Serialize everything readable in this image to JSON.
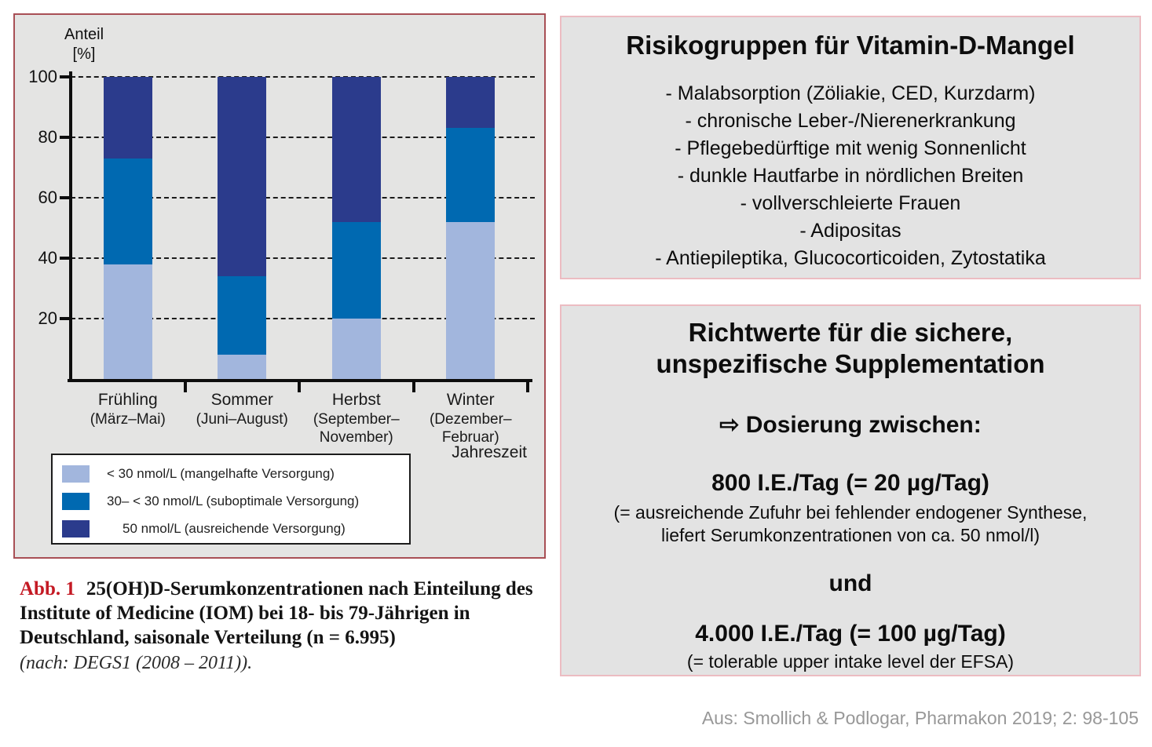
{
  "figure": {
    "y_axis_title_line1": "Anteil",
    "y_axis_title_line2": "[%]",
    "x_axis_title": "Jahreszeit",
    "caption": {
      "label": "Abb. 1",
      "text": "25(OH)D-Serumkonzentrationen nach Einteilung des Institute of Medicine (IOM) bei 18- bis 79-Jährigen in Deutschland, saisonale Verteilung (n = 6.995)",
      "note": "(nach: DEGS1 (2008 – 2011))."
    }
  },
  "chart_data": {
    "type": "bar",
    "stacked": true,
    "title": "",
    "xlabel": "Jahreszeit",
    "ylabel": "Anteil [%]",
    "ylim": [
      0,
      100
    ],
    "yticks": [
      20,
      40,
      60,
      80,
      100
    ],
    "grid": "dashed-horizontal",
    "legend_position": "bottom-left",
    "categories": [
      {
        "label": "Frühling",
        "sublabel_lines": [
          "(März–Mai)"
        ]
      },
      {
        "label": "Sommer",
        "sublabel_lines": [
          "(Juni–August)"
        ]
      },
      {
        "label": "Herbst",
        "sublabel_lines": [
          "(September–",
          "November)"
        ]
      },
      {
        "label": "Winter",
        "sublabel_lines": [
          "(Dezember–",
          "Februar)"
        ]
      }
    ],
    "series": [
      {
        "name": "< 30 nmol/L (mangelhafte Versorgung)",
        "color": "#a2b6dd",
        "values": [
          38,
          8,
          20,
          52
        ]
      },
      {
        "name": "30– < 30 nmol/L (suboptimale Versorgung)",
        "color": "#0069b1",
        "values": [
          35,
          26,
          32,
          31
        ]
      },
      {
        "name": "50 nmol/L (ausreichende Versorgung)",
        "color": "#2b3b8c",
        "values": [
          27,
          66,
          48,
          17
        ]
      }
    ]
  },
  "risk_panel": {
    "title": "Risikogruppen für Vitamin-D-Mangel",
    "items": [
      "- Malabsorption (Zöliakie, CED, Kurzdarm)",
      "- chronische Leber-/Nierenerkrankung",
      "- Pflegebedürftige mit wenig Sonnenlicht",
      "- dunkle Hautfarbe in nördlichen Breiten",
      "- vollverschleierte Frauen",
      "- Adipositas",
      "- Antiepileptika, Glucocorticoiden, Zytostatika"
    ]
  },
  "dosing_panel": {
    "title_line1": "Richtwerte für die sichere,",
    "title_line2": "unspezifische Supplementation",
    "heading": "⇨ Dosierung zwischen:",
    "dose1": "800 I.E./Tag (= 20 µg/Tag)",
    "dose1_note_line1": "(= ausreichende Zufuhr bei fehlender endogener Synthese,",
    "dose1_note_line2": "liefert Serumkonzentrationen von ca. 50 nmol/l)",
    "connector": "und",
    "dose2": "4.000 I.E./Tag (= 100 µg/Tag)",
    "dose2_note": "(= tolerable upper intake level der EFSA)"
  },
  "source": "Aus: Smollich & Podlogar, Pharmakon 2019; 2: 98-105",
  "colors": {
    "figure_panel_bg": "#e4e4e3",
    "figure_panel_border": "#a84f55",
    "right_panel_bg": "#e3e3e3",
    "right_panel_border": "#ecbcc2",
    "caption_label_red": "#c41a24",
    "source_gray": "#989898",
    "series_light_blue": "#a2b6dd",
    "series_medium_blue": "#0069b1",
    "series_dark_blue": "#2b3b8c"
  }
}
